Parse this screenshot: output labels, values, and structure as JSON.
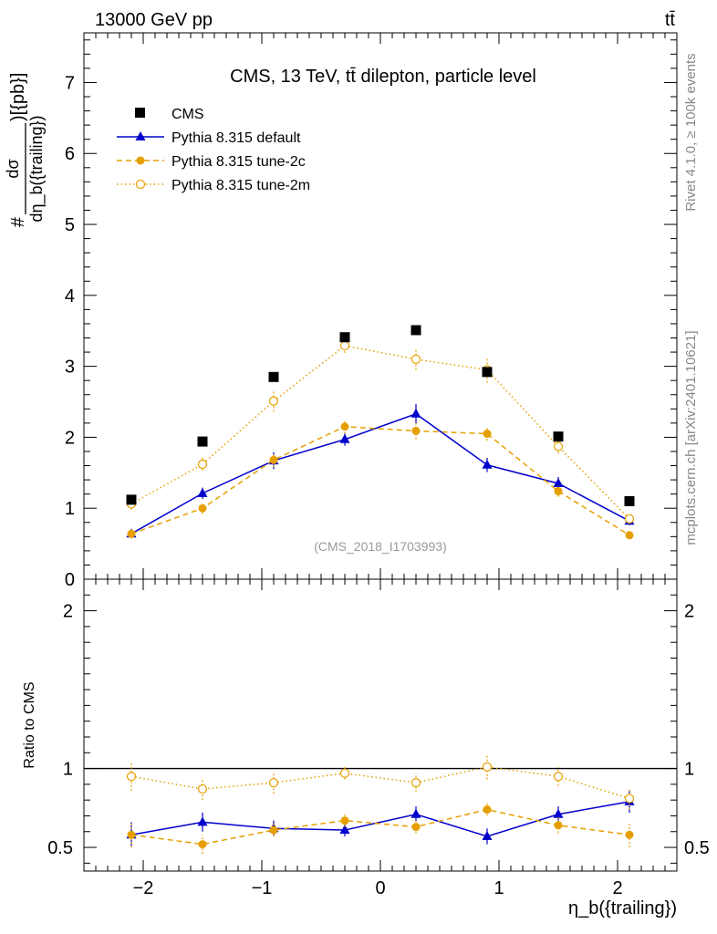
{
  "header": {
    "left_label": "13000 GeV pp",
    "right_label": "tt̄"
  },
  "side_labels": {
    "rivet": "Rivet 4.1.0, ≥ 100k events",
    "mcplots": "mcplots.cern.ch [arXiv:2401.10621]"
  },
  "colors": {
    "cms": "#000000",
    "default": "#0000cc",
    "tune2c": "#e69f00",
    "tune2m": "#e69f00",
    "reference_line": "#000000"
  },
  "chart_data": [
    {
      "type": "line",
      "panel": "main",
      "title": "CMS, 13 TeV, tt̄ dilepton, particle level",
      "analysis_id": "(CMS_2018_I1703993)",
      "ylabel_numerator": "dσ",
      "ylabel_denominator": "dη_b({trailing})",
      "ylabel_prefix": "#",
      "ylabel_suffix": ")[{pb}]",
      "ylim": [
        0,
        7.7
      ],
      "yticks": [
        0,
        1,
        2,
        3,
        4,
        5,
        6,
        7
      ],
      "ytick_labels": [
        "0",
        "1",
        "2",
        "3",
        "4",
        "5",
        "6",
        "7"
      ],
      "xlim": [
        -2.5,
        2.5
      ],
      "x": [
        -2.1,
        -1.5,
        -0.9,
        -0.3,
        0.3,
        0.9,
        1.5,
        2.1
      ],
      "legend_position": "top-left",
      "series": [
        {
          "name": "CMS",
          "style": "black square markers",
          "values": [
            1.12,
            1.94,
            2.85,
            3.41,
            3.51,
            2.92,
            2.01,
            1.1
          ]
        },
        {
          "name": "Pythia 8.315 default",
          "style": "solid blue line, filled triangles",
          "values": [
            0.64,
            1.21,
            1.67,
            1.97,
            2.33,
            1.61,
            1.35,
            0.82
          ],
          "errors": [
            0.03,
            0.08,
            0.12,
            0.09,
            0.14,
            0.1,
            0.09,
            0.06
          ]
        },
        {
          "name": "Pythia 8.315 tune-2c",
          "style": "dashed orange line, filled circles",
          "values": [
            0.64,
            1.0,
            1.68,
            2.15,
            2.09,
            2.05,
            1.24,
            0.62
          ],
          "errors": [
            0.07,
            0.08,
            0.1,
            0.1,
            0.12,
            0.1,
            0.08,
            0.05
          ]
        },
        {
          "name": "Pythia 8.315 tune-2m",
          "style": "dotted orange line, open circles",
          "values": [
            1.06,
            1.62,
            2.51,
            3.29,
            3.1,
            2.95,
            1.87,
            0.85
          ],
          "errors": [
            0.08,
            0.09,
            0.15,
            0.1,
            0.15,
            0.18,
            0.1,
            0.07
          ]
        }
      ]
    },
    {
      "type": "line",
      "panel": "ratio",
      "ylabel": "Ratio to CMS",
      "xlabel": "η_b({trailing})",
      "ylim": [
        0.35,
        2.2
      ],
      "yticks": [
        0.5,
        1,
        2
      ],
      "ytick_labels": [
        "0.5",
        "1",
        "2"
      ],
      "xlim": [
        -2.5,
        2.5
      ],
      "xticks": [
        -2,
        -1,
        0,
        1,
        2
      ],
      "xtick_labels": [
        "−2",
        "−1",
        "0",
        "1",
        "2"
      ],
      "x": [
        -2.1,
        -1.5,
        -0.9,
        -0.3,
        0.3,
        0.9,
        1.5,
        2.1
      ],
      "reference": 1.0,
      "series": [
        {
          "name": "Pythia 8.315 default",
          "values": [
            0.58,
            0.66,
            0.62,
            0.61,
            0.71,
            0.57,
            0.71,
            0.79
          ],
          "errors": [
            0.08,
            0.06,
            0.05,
            0.04,
            0.05,
            0.05,
            0.05,
            0.07
          ]
        },
        {
          "name": "Pythia 8.315 tune-2c",
          "values": [
            0.58,
            0.52,
            0.61,
            0.67,
            0.63,
            0.74,
            0.64,
            0.58
          ],
          "errors": [
            0.08,
            0.06,
            0.04,
            0.04,
            0.04,
            0.04,
            0.05,
            0.08
          ]
        },
        {
          "name": "Pythia 8.315 tune-2m",
          "values": [
            0.95,
            0.87,
            0.91,
            0.97,
            0.91,
            1.01,
            0.95,
            0.81
          ],
          "errors": [
            0.09,
            0.07,
            0.07,
            0.04,
            0.06,
            0.08,
            0.06,
            0.07
          ]
        }
      ]
    }
  ]
}
